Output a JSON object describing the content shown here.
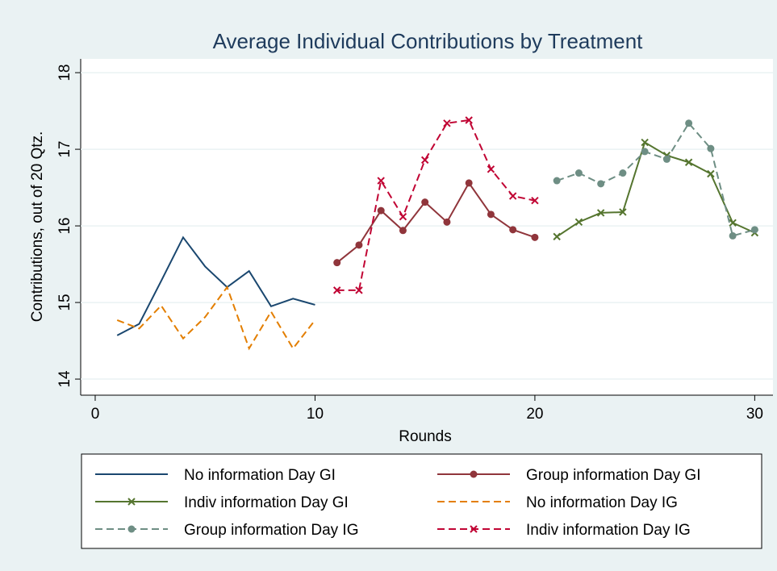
{
  "chart_data": {
    "type": "line",
    "title": "Average Individual Contributions by Treatment",
    "x_label": "Rounds",
    "y_label": "Contributions, out of 20 Qtz.",
    "xlim": [
      -0.66,
      30.83
    ],
    "xticks": [
      0,
      10,
      20,
      30
    ],
    "ylim": [
      13.79,
      18.18
    ],
    "yticks": [
      14,
      15,
      16,
      17,
      18
    ],
    "grid": true,
    "series": [
      {
        "name": "No information Day GI",
        "color": "#1a476f",
        "dash": false,
        "marker": "none",
        "x": [
          1,
          2,
          3,
          4,
          5,
          6,
          7,
          8,
          9,
          10
        ],
        "values": [
          14.57,
          14.72,
          15.28,
          15.85,
          15.47,
          15.2,
          15.41,
          14.95,
          15.05,
          14.97
        ]
      },
      {
        "name": "Group information Day GI",
        "color": "#90353b",
        "dash": false,
        "marker": "circle",
        "x": [
          11,
          12,
          13,
          14,
          15,
          16,
          17,
          18,
          19,
          20
        ],
        "values": [
          15.52,
          15.75,
          16.2,
          15.94,
          16.31,
          16.05,
          16.56,
          16.15,
          15.95,
          15.85
        ]
      },
      {
        "name": "Indiv information Day GI",
        "color": "#55752f",
        "dash": false,
        "marker": "x",
        "x": [
          21,
          22,
          23,
          24,
          25,
          26,
          27,
          28,
          29,
          30
        ],
        "values": [
          15.86,
          16.05,
          16.17,
          16.18,
          17.09,
          16.92,
          16.83,
          16.68,
          16.04,
          15.91
        ]
      },
      {
        "name": "No information Day IG",
        "color": "#e37e00",
        "dash": true,
        "marker": "none",
        "x": [
          1,
          2,
          3,
          4,
          5,
          6,
          7,
          8,
          9,
          10
        ],
        "values": [
          14.77,
          14.66,
          14.96,
          14.53,
          14.81,
          15.2,
          14.4,
          14.88,
          14.4,
          14.77
        ]
      },
      {
        "name": "Group information Day IG",
        "color": "#6e8e84",
        "dash": true,
        "marker": "circle",
        "x": [
          21,
          22,
          23,
          24,
          25,
          26,
          27,
          28,
          29,
          30
        ],
        "values": [
          16.59,
          16.69,
          16.55,
          16.69,
          16.97,
          16.87,
          17.34,
          17.01,
          15.87,
          15.95
        ]
      },
      {
        "name": "Indiv information Day IG",
        "color": "#c10534",
        "dash": true,
        "marker": "x",
        "x": [
          11,
          12,
          13,
          14,
          15,
          16,
          17,
          18,
          19,
          20
        ],
        "values": [
          15.16,
          15.16,
          16.59,
          16.12,
          16.86,
          17.34,
          17.38,
          16.74,
          16.39,
          16.33
        ]
      }
    ]
  }
}
